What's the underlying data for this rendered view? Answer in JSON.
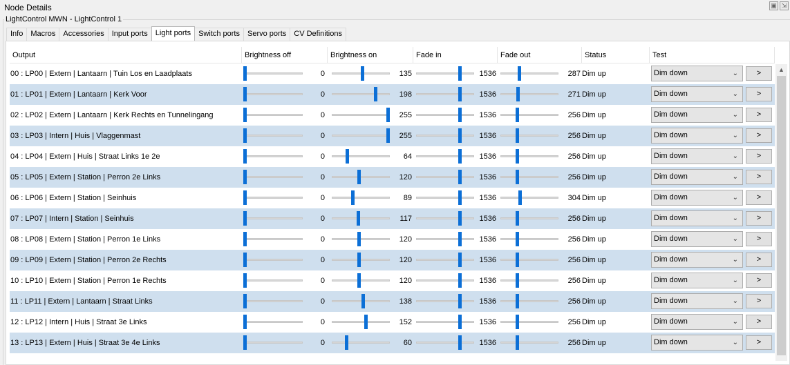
{
  "window": {
    "title": "Node Details"
  },
  "group_title": "LightControl MWN - LightControl 1",
  "tabs": [
    {
      "label": "Info"
    },
    {
      "label": "Macros"
    },
    {
      "label": "Accessories"
    },
    {
      "label": "Input ports"
    },
    {
      "label": "Light ports",
      "active": true
    },
    {
      "label": "Switch ports"
    },
    {
      "label": "Servo ports"
    },
    {
      "label": "CV Definitions"
    }
  ],
  "columns": [
    "Output",
    "Brightness off",
    "Brightness on",
    "Fade in",
    "Fade out",
    "Status",
    "Test"
  ],
  "slider_max": {
    "brightness": 255,
    "fade": 2000
  },
  "rows": [
    {
      "output": "00 : LP00 | Extern | Lantaarn | Tuin Los en Laadplaats",
      "b_off": 0,
      "b_on": 135,
      "fade_in": 1536,
      "fade_out": 287,
      "status": "Dim up",
      "test": "Dim down",
      "button": ">"
    },
    {
      "output": "01 : LP01 | Extern | Lantaarn | Kerk Voor",
      "b_off": 0,
      "b_on": 198,
      "fade_in": 1536,
      "fade_out": 271,
      "status": "Dim up",
      "test": "Dim down",
      "button": ">"
    },
    {
      "output": "02 : LP02 | Extern | Lantaarn | Kerk Rechts en Tunnelingang",
      "b_off": 0,
      "b_on": 255,
      "fade_in": 1536,
      "fade_out": 256,
      "status": "Dim up",
      "test": "Dim down",
      "button": ">"
    },
    {
      "output": "03 : LP03 | Intern | Huis | Vlaggenmast",
      "b_off": 0,
      "b_on": 255,
      "fade_in": 1536,
      "fade_out": 256,
      "status": "Dim up",
      "test": "Dim down",
      "button": ">"
    },
    {
      "output": "04 : LP04 | Extern | Huis | Straat Links 1e 2e",
      "b_off": 0,
      "b_on": 64,
      "fade_in": 1536,
      "fade_out": 256,
      "status": "Dim up",
      "test": "Dim down",
      "button": ">"
    },
    {
      "output": "05 : LP05 | Extern | Station | Perron 2e Links",
      "b_off": 0,
      "b_on": 120,
      "fade_in": 1536,
      "fade_out": 256,
      "status": "Dim up",
      "test": "Dim down",
      "button": ">"
    },
    {
      "output": "06 : LP06 | Extern | Station | Seinhuis",
      "b_off": 0,
      "b_on": 89,
      "fade_in": 1536,
      "fade_out": 304,
      "status": "Dim up",
      "test": "Dim down",
      "button": ">"
    },
    {
      "output": "07 : LP07 | Intern | Station | Seinhuis",
      "b_off": 0,
      "b_on": 117,
      "fade_in": 1536,
      "fade_out": 256,
      "status": "Dim up",
      "test": "Dim down",
      "button": ">"
    },
    {
      "output": "08 : LP08 | Extern | Station | Perron 1e Links",
      "b_off": 0,
      "b_on": 120,
      "fade_in": 1536,
      "fade_out": 256,
      "status": "Dim up",
      "test": "Dim down",
      "button": ">"
    },
    {
      "output": "09 : LP09 | Extern | Station | Perron 2e Rechts",
      "b_off": 0,
      "b_on": 120,
      "fade_in": 1536,
      "fade_out": 256,
      "status": "Dim up",
      "test": "Dim down",
      "button": ">"
    },
    {
      "output": "10 : LP10 | Extern | Station | Perron 1e Rechts",
      "b_off": 0,
      "b_on": 120,
      "fade_in": 1536,
      "fade_out": 256,
      "status": "Dim up",
      "test": "Dim down",
      "button": ">"
    },
    {
      "output": "11 : LP11 | Extern | Lantaarn | Straat Links",
      "b_off": 0,
      "b_on": 138,
      "fade_in": 1536,
      "fade_out": 256,
      "status": "Dim up",
      "test": "Dim down",
      "button": ">"
    },
    {
      "output": "12 : LP12 | Intern | Huis | Straat 3e Links",
      "b_off": 0,
      "b_on": 152,
      "fade_in": 1536,
      "fade_out": 256,
      "status": "Dim up",
      "test": "Dim down",
      "button": ">"
    },
    {
      "output": "13 : LP13 | Extern | Huis | Straat 3e 4e Links",
      "b_off": 0,
      "b_on": 60,
      "fade_in": 1536,
      "fade_out": 256,
      "status": "Dim up",
      "test": "Dim down",
      "button": ">"
    }
  ]
}
